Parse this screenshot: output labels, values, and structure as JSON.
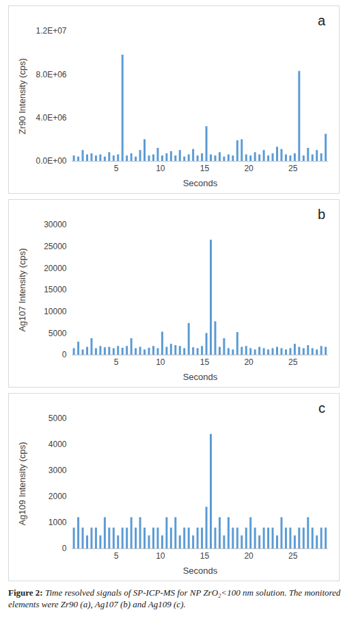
{
  "chart_data": [
    {
      "type": "bar",
      "annotations": [
        "a"
      ],
      "x_label": "Seconds",
      "y_label": "Zr90 Intensity (cps)",
      "color": "#5b9bd5",
      "grid": false,
      "x": [
        0.2,
        0.7,
        1.2,
        1.7,
        2.2,
        2.7,
        3.2,
        3.7,
        4.2,
        4.7,
        5.2,
        5.7,
        6.2,
        6.7,
        7.2,
        7.7,
        8.2,
        8.7,
        9.2,
        9.7,
        10.2,
        10.7,
        11.2,
        11.7,
        12.2,
        12.7,
        13.2,
        13.7,
        14.2,
        14.7,
        15.2,
        15.7,
        16.2,
        16.7,
        17.2,
        17.7,
        18.2,
        18.7,
        19.2,
        19.7,
        20.2,
        20.7,
        21.2,
        21.7,
        22.2,
        22.7,
        23.2,
        23.7,
        24.2,
        24.7,
        25.2,
        25.7,
        26.2,
        26.7,
        27.2,
        27.7,
        28.2,
        28.7
      ],
      "values": [
        500000,
        400000,
        1000000,
        600000,
        700000,
        500000,
        600000,
        400000,
        800000,
        500000,
        600000,
        9800000,
        500000,
        700000,
        400000,
        1000000,
        2000000,
        500000,
        600000,
        1200000,
        500000,
        700000,
        900000,
        500000,
        1000000,
        400000,
        600000,
        1100000,
        500000,
        700000,
        3200000,
        600000,
        500000,
        800000,
        400000,
        600000,
        500000,
        1900000,
        2000000,
        600000,
        500000,
        800000,
        600000,
        1000000,
        500000,
        700000,
        1300000,
        1100000,
        600000,
        500000,
        700000,
        8300000,
        500000,
        1200000,
        600000,
        1000000,
        700000,
        2500000
      ],
      "xlim": [
        0,
        29
      ],
      "xticks": [
        5,
        10,
        15,
        20,
        25
      ],
      "ylim": [
        0,
        12000000
      ],
      "yticks": [
        {
          "value": 0,
          "label": "0.0E+00"
        },
        {
          "value": 4000000,
          "label": "4.0E+06"
        },
        {
          "value": 8000000,
          "label": "8.0E+06"
        },
        {
          "value": 12000000,
          "label": "1.2E+07"
        }
      ]
    },
    {
      "type": "bar",
      "annotations": [
        "b"
      ],
      "x_label": "Seconds",
      "y_label": "Ag107 Intensity (cps)",
      "color": "#5b9bd5",
      "grid": false,
      "x": [
        0.2,
        0.7,
        1.2,
        1.7,
        2.2,
        2.7,
        3.2,
        3.7,
        4.2,
        4.7,
        5.2,
        5.7,
        6.2,
        6.7,
        7.2,
        7.7,
        8.2,
        8.7,
        9.2,
        9.7,
        10.2,
        10.7,
        11.2,
        11.7,
        12.2,
        12.7,
        13.2,
        13.7,
        14.2,
        14.7,
        15.2,
        15.7,
        16.2,
        16.7,
        17.2,
        17.7,
        18.2,
        18.7,
        19.2,
        19.7,
        20.2,
        20.7,
        21.2,
        21.7,
        22.2,
        22.7,
        23.2,
        23.7,
        24.2,
        24.7,
        25.2,
        25.7,
        26.2,
        26.7,
        27.2,
        27.7,
        28.2,
        28.7
      ],
      "values": [
        1500,
        3000,
        1200,
        1800,
        3800,
        1500,
        2000,
        1700,
        1800,
        1500,
        2000,
        1600,
        2000,
        3800,
        1500,
        1800,
        1200,
        1600,
        2000,
        1500,
        5300,
        1800,
        2500,
        2200,
        2000,
        1500,
        7300,
        1700,
        1500,
        2000,
        5000,
        26500,
        7700,
        1800,
        3800,
        1500,
        1200,
        5200,
        1800,
        2000,
        1500,
        1200,
        1800,
        1500,
        1200,
        1500,
        1800,
        1500,
        1200,
        1500,
        2500,
        1800,
        1500,
        2200,
        1500,
        1200,
        2000,
        1800
      ],
      "xlim": [
        0,
        29
      ],
      "xticks": [
        5,
        10,
        15,
        20,
        25
      ],
      "ylim": [
        0,
        30000
      ],
      "yticks": [
        0,
        5000,
        10000,
        15000,
        20000,
        25000,
        30000
      ]
    },
    {
      "type": "bar",
      "annotations": [
        "c"
      ],
      "x_label": "Seconds",
      "y_label": "Ag109 Intensity (cps)",
      "color": "#5b9bd5",
      "grid": false,
      "x": [
        0.2,
        0.7,
        1.2,
        1.7,
        2.2,
        2.7,
        3.2,
        3.7,
        4.2,
        4.7,
        5.2,
        5.7,
        6.2,
        6.7,
        7.2,
        7.7,
        8.2,
        8.7,
        9.2,
        9.7,
        10.2,
        10.7,
        11.2,
        11.7,
        12.2,
        12.7,
        13.2,
        13.7,
        14.2,
        14.7,
        15.2,
        15.7,
        16.2,
        16.7,
        17.2,
        17.7,
        18.2,
        18.7,
        19.2,
        19.7,
        20.2,
        20.7,
        21.2,
        21.7,
        22.2,
        22.7,
        23.2,
        23.7,
        24.2,
        24.7,
        25.2,
        25.7,
        26.2,
        26.7,
        27.2,
        27.7,
        28.2,
        28.7
      ],
      "values": [
        800,
        1200,
        800,
        500,
        800,
        800,
        500,
        1200,
        800,
        800,
        500,
        800,
        800,
        1200,
        800,
        1200,
        800,
        500,
        800,
        800,
        500,
        1200,
        800,
        1200,
        500,
        800,
        800,
        500,
        800,
        800,
        1600,
        4400,
        800,
        1200,
        500,
        1200,
        800,
        800,
        500,
        800,
        1200,
        800,
        500,
        800,
        800,
        800,
        500,
        1200,
        800,
        800,
        500,
        800,
        800,
        1200,
        800,
        500,
        800,
        800
      ],
      "xlim": [
        0,
        29
      ],
      "xticks": [
        5,
        10,
        15,
        20,
        25
      ],
      "ylim": [
        0,
        5000
      ],
      "yticks": [
        0,
        1000,
        2000,
        3000,
        4000,
        5000
      ]
    }
  ],
  "caption": {
    "label": "Figure 2:",
    "text": "Time resolved signals of SP-ICP-MS for NP ZrO₂<100 nm solution. The monitored elements were Zr90 (a), Ag107 (b) and Ag109 (c)."
  }
}
